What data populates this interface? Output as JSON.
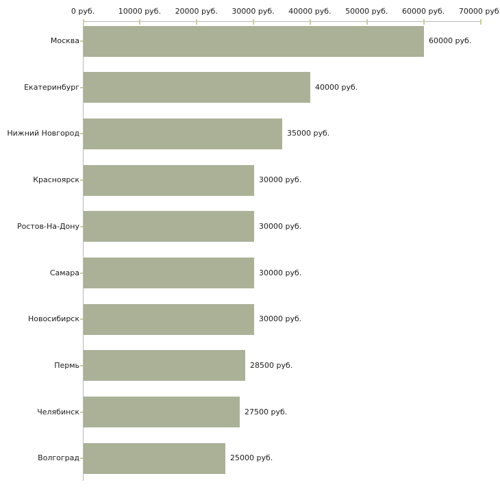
{
  "chart_data": {
    "type": "bar",
    "orientation": "horizontal",
    "title": "",
    "xlabel": "",
    "ylabel": "",
    "unit": "руб.",
    "xlim": [
      0,
      70000
    ],
    "grid": false,
    "legend": null,
    "categories": [
      "Москва",
      "Екатеринбург",
      "Нижний Новгород",
      "Красноярск",
      "Ростов-На-Дону",
      "Самара",
      "Новосибирск",
      "Пермь",
      "Челябинск",
      "Волгоград"
    ],
    "values": [
      60000,
      40000,
      35000,
      30000,
      30000,
      30000,
      30000,
      28500,
      27500,
      25000
    ],
    "value_labels": [
      "60000 руб.",
      "40000 руб.",
      "35000 руб.",
      "30000 руб.",
      "30000 руб.",
      "30000 руб.",
      "30000 руб.",
      "28500 руб.",
      "27500 руб.",
      "25000 руб."
    ],
    "x_ticks": [
      {
        "value": 0,
        "label": "0 руб."
      },
      {
        "value": 10000,
        "label": "10000 руб."
      },
      {
        "value": 20000,
        "label": "20000 руб."
      },
      {
        "value": 30000,
        "label": "30000 руб."
      },
      {
        "value": 40000,
        "label": "40000 руб."
      },
      {
        "value": 50000,
        "label": "50000 руб."
      },
      {
        "value": 60000,
        "label": "60000 руб."
      },
      {
        "value": 70000,
        "label": "70000 руб."
      }
    ],
    "colors": {
      "bar": "#aab197",
      "axis_line": "#b5b5b5",
      "tick": "#cbcba4",
      "text": "#1a1a1a",
      "background": "#ffffff"
    }
  }
}
